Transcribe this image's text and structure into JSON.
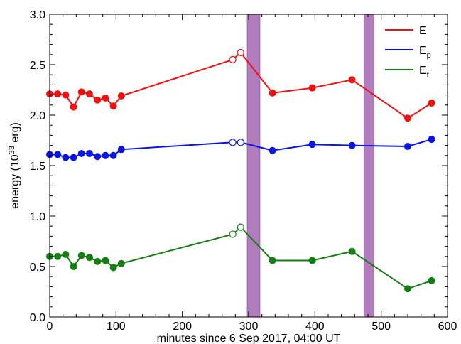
{
  "chart_data": {
    "type": "line",
    "xlabel": "minutes since 6 Sep 2017, 04:00 UT",
    "ylabel_main": "energy (10",
    "ylabel_sup": "33",
    "ylabel_tail": " erg)",
    "xlim": [
      0,
      600
    ],
    "ylim": [
      0.0,
      3.0
    ],
    "xticks": [
      0,
      100,
      200,
      300,
      400,
      500,
      600
    ],
    "xtick_labels": [
      "0",
      "100",
      "200",
      "300",
      "400",
      "500",
      "600"
    ],
    "yticks": [
      0.0,
      0.5,
      1.0,
      1.5,
      2.0,
      2.5,
      3.0
    ],
    "ytick_labels": [
      "0.0",
      "0.5",
      "1.0",
      "1.5",
      "2.0",
      "2.5",
      "3.0"
    ],
    "grid": false,
    "legend_position": "top-right",
    "shaded_bands": [
      {
        "x0": 298,
        "x1": 317,
        "color": "#b07cbc"
      },
      {
        "x0": 474,
        "x1": 489,
        "color": "#b07cbc"
      }
    ],
    "x": [
      0,
      12,
      24,
      36,
      48,
      60,
      72,
      84,
      96,
      108,
      276,
      288,
      336,
      396,
      456,
      540,
      576
    ],
    "hollow_indices": [
      10,
      11
    ],
    "series": [
      {
        "label_main": "E",
        "label_sub": "",
        "color": "#ee1111",
        "values": [
          2.21,
          2.21,
          2.2,
          2.08,
          2.23,
          2.21,
          2.15,
          2.17,
          2.09,
          2.19,
          2.55,
          2.62,
          2.22,
          2.27,
          2.35,
          1.97,
          2.12
        ]
      },
      {
        "label_main": "E",
        "label_sub": "p",
        "color": "#0a14e6",
        "values": [
          1.61,
          1.61,
          1.58,
          1.58,
          1.62,
          1.62,
          1.59,
          1.6,
          1.6,
          1.66,
          1.73,
          1.73,
          1.65,
          1.71,
          1.7,
          1.69,
          1.76
        ]
      },
      {
        "label_main": "E",
        "label_sub": "f",
        "color": "#137e13",
        "values": [
          0.6,
          0.6,
          0.62,
          0.5,
          0.61,
          0.59,
          0.55,
          0.56,
          0.49,
          0.53,
          0.82,
          0.89,
          0.56,
          0.56,
          0.65,
          0.28,
          0.36
        ]
      }
    ]
  }
}
